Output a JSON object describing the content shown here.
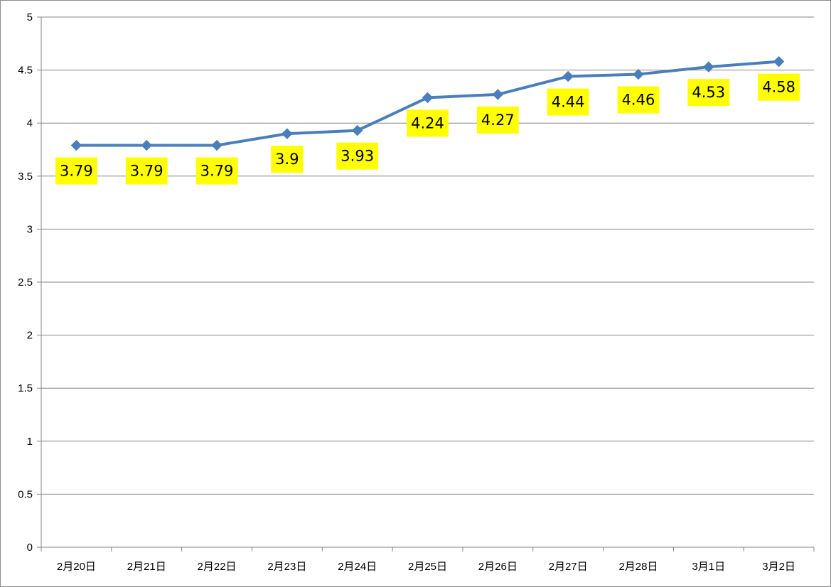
{
  "chart_data": {
    "type": "line",
    "categories": [
      "2月20日",
      "2月21日",
      "2月22日",
      "2月23日",
      "2月24日",
      "2月25日",
      "2月26日",
      "2月27日",
      "2月28日",
      "3月1日",
      "3月2日"
    ],
    "series": [
      {
        "values": [
          3.79,
          3.79,
          3.79,
          3.9,
          3.93,
          4.24,
          4.27,
          4.44,
          4.46,
          4.53,
          4.58
        ],
        "labels": [
          "3.79",
          "3.79",
          "3.79",
          "3.9",
          "3.93",
          "4.24",
          "4.27",
          "4.44",
          "4.46",
          "4.53",
          "4.58"
        ]
      }
    ],
    "y_ticks": [
      "0",
      "0.5",
      "1",
      "1.5",
      "2",
      "2.5",
      "3",
      "3.5",
      "4",
      "4.5",
      "5"
    ],
    "ylim": [
      0,
      5
    ],
    "grid": true,
    "legend": "none",
    "line_color": "#4a7ebb",
    "label_background": "#ffff00",
    "gridline_color": "#868686",
    "marker": "diamond"
  }
}
